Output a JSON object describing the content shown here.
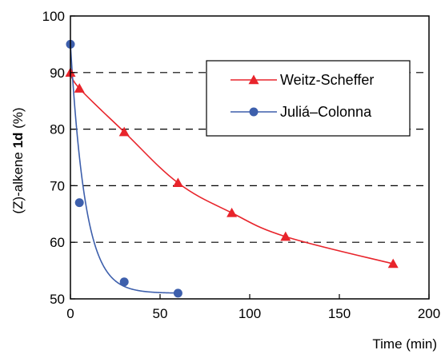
{
  "chart_data": {
    "type": "line",
    "xlabel": "Time (min)",
    "ylabel": {
      "prefix": "(Z)-alkene ",
      "bold": "1d",
      "suffix": " (%)"
    },
    "xlim": [
      0,
      200
    ],
    "ylim": [
      50,
      100
    ],
    "xticks": [
      "0",
      "50",
      "100",
      "150",
      "200"
    ],
    "yticks": [
      "50",
      "60",
      "70",
      "80",
      "90",
      "100"
    ],
    "grid": "horizontal-dashed",
    "legend_position": "top-right",
    "series": [
      {
        "name": "Weitz-Scheffer",
        "color": "#e8242b",
        "marker": "triangle",
        "x": [
          0,
          5,
          30,
          60,
          90,
          120,
          180
        ],
        "y": [
          90,
          87.2,
          79.5,
          70.5,
          65.2,
          61,
          56.2
        ]
      },
      {
        "name": "Juliá–Colonna",
        "color": "#3d5fac",
        "marker": "circle",
        "x": [
          0,
          5,
          30,
          60
        ],
        "y": [
          95,
          67,
          53,
          51
        ]
      }
    ]
  }
}
